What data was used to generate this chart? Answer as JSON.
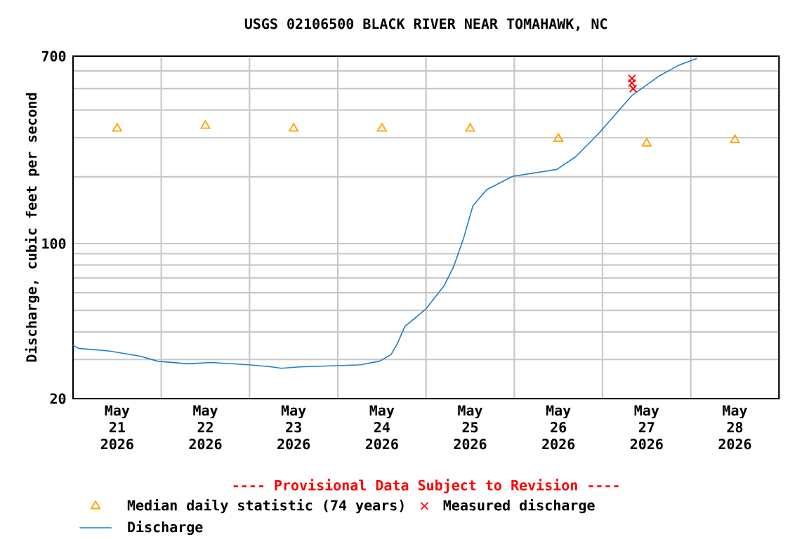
{
  "chart_data": {
    "type": "line",
    "title": "USGS 02106500 BLACK RIVER NEAR TOMAHAWK, NC",
    "ylabel": "Discharge, cubic feet per second",
    "annotations": [
      "---- Provisional Data Subject to Revision ----"
    ],
    "log": "y",
    "grid": true,
    "legend": "bottom",
    "xlim": [
      "2026-05-21T00:00",
      "2026-05-29T00:00"
    ],
    "ylim": [
      20,
      700
    ],
    "xticks": [
      {
        "value": "2026-05-21T00:00",
        "label": null
      },
      {
        "value": "2026-05-22T00:00",
        "label": null
      },
      {
        "value": "2026-05-23T00:00",
        "label": null
      },
      {
        "value": "2026-05-24T00:00",
        "label": null
      },
      {
        "value": "2026-05-25T00:00",
        "label": null
      },
      {
        "value": "2026-05-26T00:00",
        "label": null
      },
      {
        "value": "2026-05-27T00:00",
        "label": null
      },
      {
        "value": "2026-05-28T00:00",
        "label": null
      },
      {
        "value": "2026-05-29T00:00",
        "label": null
      },
      {
        "value": "2026-05-21T12:00",
        "label": "May 21 2026"
      },
      {
        "value": "2026-05-22T12:00",
        "label": "May 22 2026"
      },
      {
        "value": "2026-05-23T12:00",
        "label": "May 23 2026"
      },
      {
        "value": "2026-05-24T12:00",
        "label": "May 24 2026"
      },
      {
        "value": "2026-05-25T12:00",
        "label": "May 25 2026"
      },
      {
        "value": "2026-05-26T12:00",
        "label": "May 26 2026"
      },
      {
        "value": "2026-05-27T12:00",
        "label": "May 27 2026"
      },
      {
        "value": "2026-05-28T12:00",
        "label": "May 28 2026"
      }
    ],
    "yticks": [
      20,
      {
        "value": 30,
        "label": null
      },
      {
        "value": 40,
        "label": null
      },
      {
        "value": 50,
        "label": null
      },
      {
        "value": 60,
        "label": null
      },
      {
        "value": 70,
        "label": null
      },
      {
        "value": 80,
        "label": null
      },
      {
        "value": 90,
        "label": null
      },
      100,
      {
        "value": 200,
        "label": null
      },
      {
        "value": 300,
        "label": null
      },
      {
        "value": 400,
        "label": null
      },
      {
        "value": 500,
        "label": null
      },
      {
        "value": 600,
        "label": null
      },
      700
    ],
    "series": [
      {
        "name": "Median daily statistic (74 years)",
        "type": "scatter",
        "marker": "triangle",
        "color": "#ffa500",
        "x": [
          "2026-05-21T12:00",
          "2026-05-22T12:00",
          "2026-05-23T12:00",
          "2026-05-24T12:00",
          "2026-05-25T12:00",
          "2026-05-26T12:00",
          "2026-05-27T12:00",
          "2026-05-28T12:00"
        ],
        "values": [
          330,
          340,
          330,
          330,
          330,
          297,
          283,
          293
        ]
      },
      {
        "name": "Measured discharge",
        "type": "scatter",
        "marker": "cross",
        "color": "#ff0000",
        "x": [
          "2026-05-27T08:00",
          "2026-05-27T08:00",
          "2026-05-27T08:20"
        ],
        "values": [
          555,
          529,
          499
        ]
      },
      {
        "name": "Discharge",
        "type": "line",
        "marker": "none",
        "color": "#1a7fd0",
        "x": [
          "2026-05-21T00:00",
          "2026-05-21T01:30",
          "2026-05-21T09:40",
          "2026-05-21T18:30",
          "2026-05-21T23:00",
          "2026-05-22T07:15",
          "2026-05-22T13:30",
          "2026-05-22T23:45",
          "2026-05-23T06:00",
          "2026-05-23T08:40",
          "2026-05-23T13:40",
          "2026-05-24T06:15",
          "2026-05-24T11:20",
          "2026-05-24T14:30",
          "2026-05-24T16:10",
          "2026-05-24T18:15",
          "2026-05-25T00:00",
          "2026-05-25T05:00",
          "2026-05-25T07:30",
          "2026-05-25T10:10",
          "2026-05-25T12:45",
          "2026-05-25T16:30",
          "2026-05-25T23:35",
          "2026-05-26T11:35",
          "2026-05-26T16:40",
          "2026-05-26T23:00",
          "2026-05-27T07:55",
          "2026-05-27T15:30",
          "2026-05-27T20:35",
          "2026-05-28T01:40"
        ],
        "values": [
          34.8,
          33.7,
          32.8,
          31.0,
          29.5,
          28.7,
          29.1,
          28.4,
          27.8,
          27.4,
          27.8,
          28.4,
          29.5,
          31.6,
          35.3,
          42.3,
          50.8,
          64.9,
          78.7,
          105,
          148,
          175,
          201,
          216,
          246,
          314,
          464,
          571,
          635,
          684
        ]
      }
    ]
  }
}
